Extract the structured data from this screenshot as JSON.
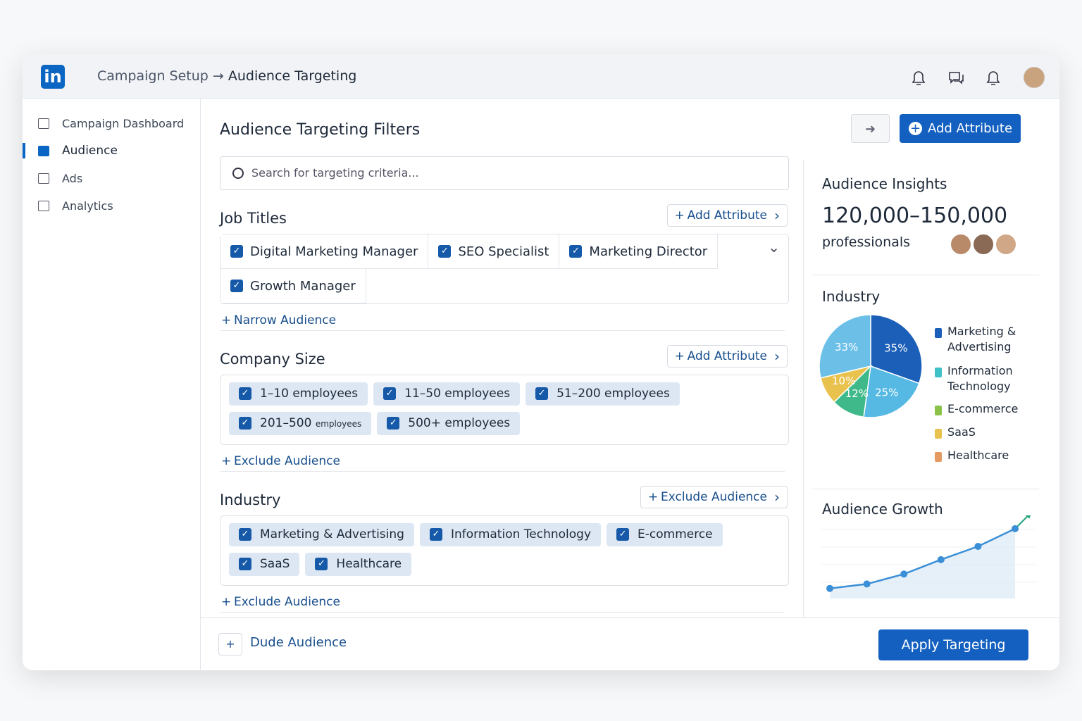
{
  "header": {
    "breadcrumb": [
      "Campaign Setup",
      "Audience Targeting"
    ]
  },
  "sidebar": {
    "items": [
      "Campaign Dashboard",
      "Audience",
      "Ads",
      "Analytics"
    ],
    "active": 1
  },
  "main": {
    "title": "Audience Targeting Filters",
    "add_button": "Add Attribute",
    "search_placeholder": "Search for targeting criteria...",
    "sections": [
      {
        "title": "Job Titles",
        "action": "Add Attribute",
        "options": [
          "Digital Marketing Manager",
          "SEO Specialist",
          "Marketing Director",
          "Growth Manager"
        ],
        "link": "Narrow Audience"
      },
      {
        "title": "Company Size",
        "action": "Add Attribute",
        "options": [
          "1–10 employees",
          "11–50 employees",
          "51–200 employees",
          {
            "text": "201–500",
            "note": "employees"
          },
          "500+ employees"
        ],
        "link": "Exclude Audience"
      },
      {
        "title": "Industry",
        "action": "Exclude Audience",
        "options": [
          "Marketing & Advertising",
          "Information Technology",
          "E-commerce",
          "SaaS",
          "Healthcare"
        ],
        "link": "Exclude Audience"
      }
    ]
  },
  "footer": {
    "secondary": "Dude Audience",
    "primary": "Apply Targeting"
  },
  "insights": {
    "title": "Audience Insights",
    "size": "120,000–150,000",
    "size_unit": "professionals"
  },
  "chart_data": [
    {
      "type": "pie",
      "title": "Industry",
      "categories": [
        "Marketing & Advertising",
        "Information Technology",
        "E-commerce",
        "SaaS",
        "Healthcare"
      ],
      "values": [
        35,
        25,
        12,
        10,
        33
      ],
      "value_labels": [
        "35%",
        "25%",
        "12%",
        "10%",
        "33%"
      ],
      "colors": [
        "#1c5fb8",
        "#55b9e4",
        "#3fb98a",
        "#e9c24e",
        "#6cc0e8"
      ],
      "legend_colors": [
        "#1c5fb8",
        "#3fc1c9",
        "#8bc34a",
        "#e9c24e",
        "#e59a62"
      ]
    },
    {
      "type": "line",
      "title": "Audience Growth",
      "values": [
        4,
        8,
        17,
        30,
        42,
        58
      ],
      "ylim": [
        0,
        70
      ],
      "color": "#3b8fd6"
    }
  ]
}
